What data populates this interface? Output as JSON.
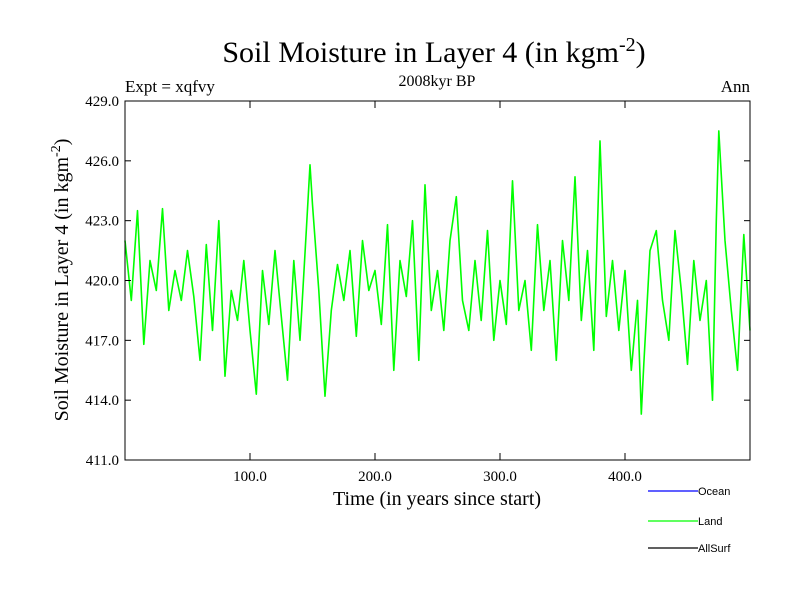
{
  "chart_data": {
    "type": "line",
    "title": "Soil Moisture in Layer 4 (in kgm",
    "title_sup": "-2",
    "title_close": ")",
    "subtitle": "2008kyr BP",
    "left_label": "Expt = xqfvy",
    "right_label": "Ann",
    "xlabel": "Time (in years since start)",
    "ylabel": "Soil Moisture in Layer 4 (in kgm",
    "ylabel_sup": "-2",
    "ylabel_close": ")",
    "xlim": [
      0,
      500
    ],
    "ylim": [
      411.0,
      429.0
    ],
    "x_ticks": [
      100,
      200,
      300,
      400
    ],
    "x_tick_labels": [
      "100.0",
      "200.0",
      "300.0",
      "400.0"
    ],
    "y_ticks": [
      411,
      414,
      417,
      420,
      423,
      426,
      429
    ],
    "y_tick_labels": [
      "411.0",
      "414.0",
      "417.0",
      "420.0",
      "423.0",
      "426.0",
      "429.0"
    ],
    "legend": [
      {
        "name": "Ocean",
        "color": "#0000ff"
      },
      {
        "name": "Land",
        "color": "#00ff00"
      },
      {
        "name": "AllSurf",
        "color": "#000000"
      }
    ],
    "series": [
      {
        "name": "Land",
        "color": "#00ff00",
        "x": [
          0,
          5,
          10,
          15,
          20,
          25,
          30,
          35,
          40,
          45,
          50,
          55,
          60,
          65,
          70,
          75,
          80,
          85,
          90,
          95,
          100,
          105,
          110,
          115,
          120,
          125,
          130,
          135,
          140,
          145,
          148,
          150,
          155,
          160,
          165,
          170,
          175,
          180,
          185,
          190,
          195,
          200,
          205,
          210,
          215,
          220,
          225,
          230,
          235,
          240,
          245,
          250,
          255,
          260,
          265,
          270,
          275,
          280,
          285,
          290,
          295,
          300,
          305,
          310,
          315,
          320,
          325,
          330,
          335,
          340,
          345,
          350,
          355,
          360,
          365,
          370,
          375,
          380,
          385,
          390,
          395,
          400,
          405,
          410,
          413,
          415,
          420,
          425,
          430,
          435,
          440,
          445,
          450,
          455,
          460,
          465,
          470,
          473,
          475,
          480,
          485,
          490,
          495,
          500
        ],
        "y": [
          422.0,
          419.0,
          423.5,
          416.8,
          421.0,
          419.5,
          423.6,
          418.5,
          420.5,
          419.0,
          421.5,
          419.2,
          416.0,
          421.8,
          417.5,
          423.0,
          415.2,
          419.5,
          418.0,
          421.0,
          417.5,
          414.3,
          420.5,
          417.8,
          421.5,
          418.2,
          415.0,
          421.0,
          417.0,
          422.5,
          425.8,
          423.8,
          419.5,
          414.2,
          418.5,
          420.8,
          419.0,
          421.5,
          417.2,
          422.0,
          419.5,
          420.5,
          417.8,
          422.8,
          415.5,
          421.0,
          419.2,
          423.0,
          416.0,
          424.8,
          418.5,
          420.5,
          417.5,
          422.0,
          424.2,
          419.0,
          417.5,
          421.0,
          418.0,
          422.5,
          417.0,
          420.0,
          417.8,
          425.0,
          418.5,
          420.0,
          416.5,
          422.8,
          418.5,
          421.0,
          416.0,
          422.0,
          419.0,
          425.2,
          418.0,
          421.5,
          416.5,
          427.0,
          418.2,
          421.0,
          417.5,
          420.5,
          415.5,
          419.0,
          413.3,
          415.8,
          421.5,
          422.5,
          419.0,
          417.0,
          422.5,
          419.5,
          415.8,
          421.0,
          418.0,
          420.0,
          414.0,
          423.0,
          427.5,
          422.0,
          418.5,
          415.5,
          422.3,
          417.5
        ]
      }
    ]
  }
}
